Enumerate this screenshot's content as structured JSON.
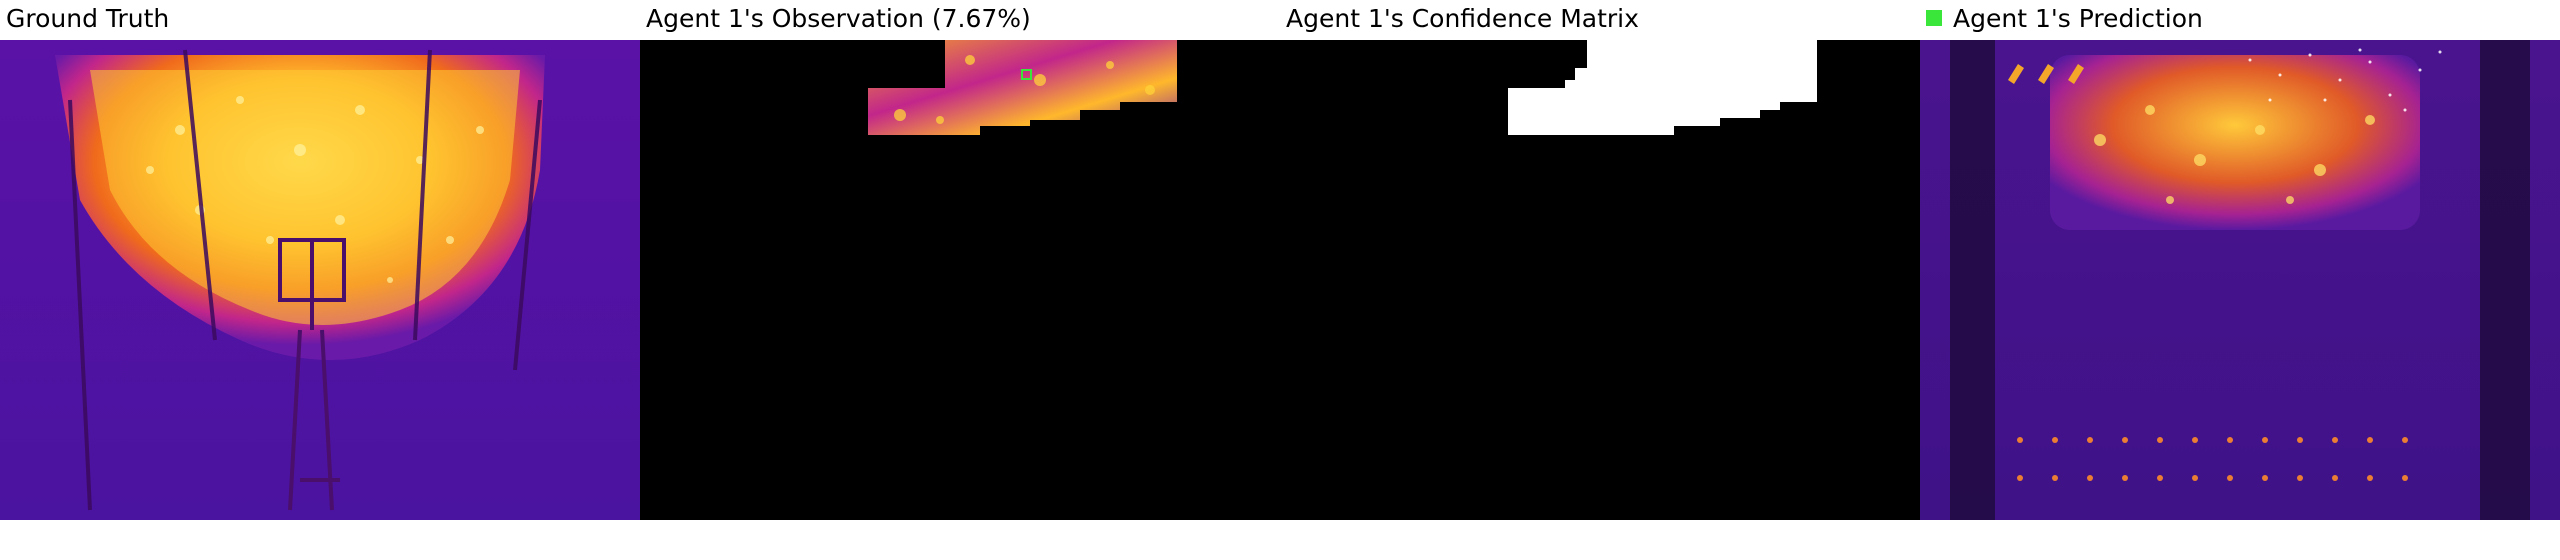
{
  "panels": {
    "ground_truth": {
      "title": "Ground Truth"
    },
    "observation": {
      "title": "Agent 1's Observation (7.67%)"
    },
    "confidence": {
      "title": "Agent 1's Confidence Matrix"
    },
    "prediction": {
      "title": "Agent 1's Prediction",
      "legend_color": "#39e639"
    }
  },
  "colors": {
    "background_purple": "#4a10a8",
    "hot_yellow": "#ffd23a",
    "hot_orange": "#f0721c",
    "magenta": "#b0219b",
    "black": "#000000",
    "white": "#ffffff",
    "marker_green": "#39e639"
  }
}
